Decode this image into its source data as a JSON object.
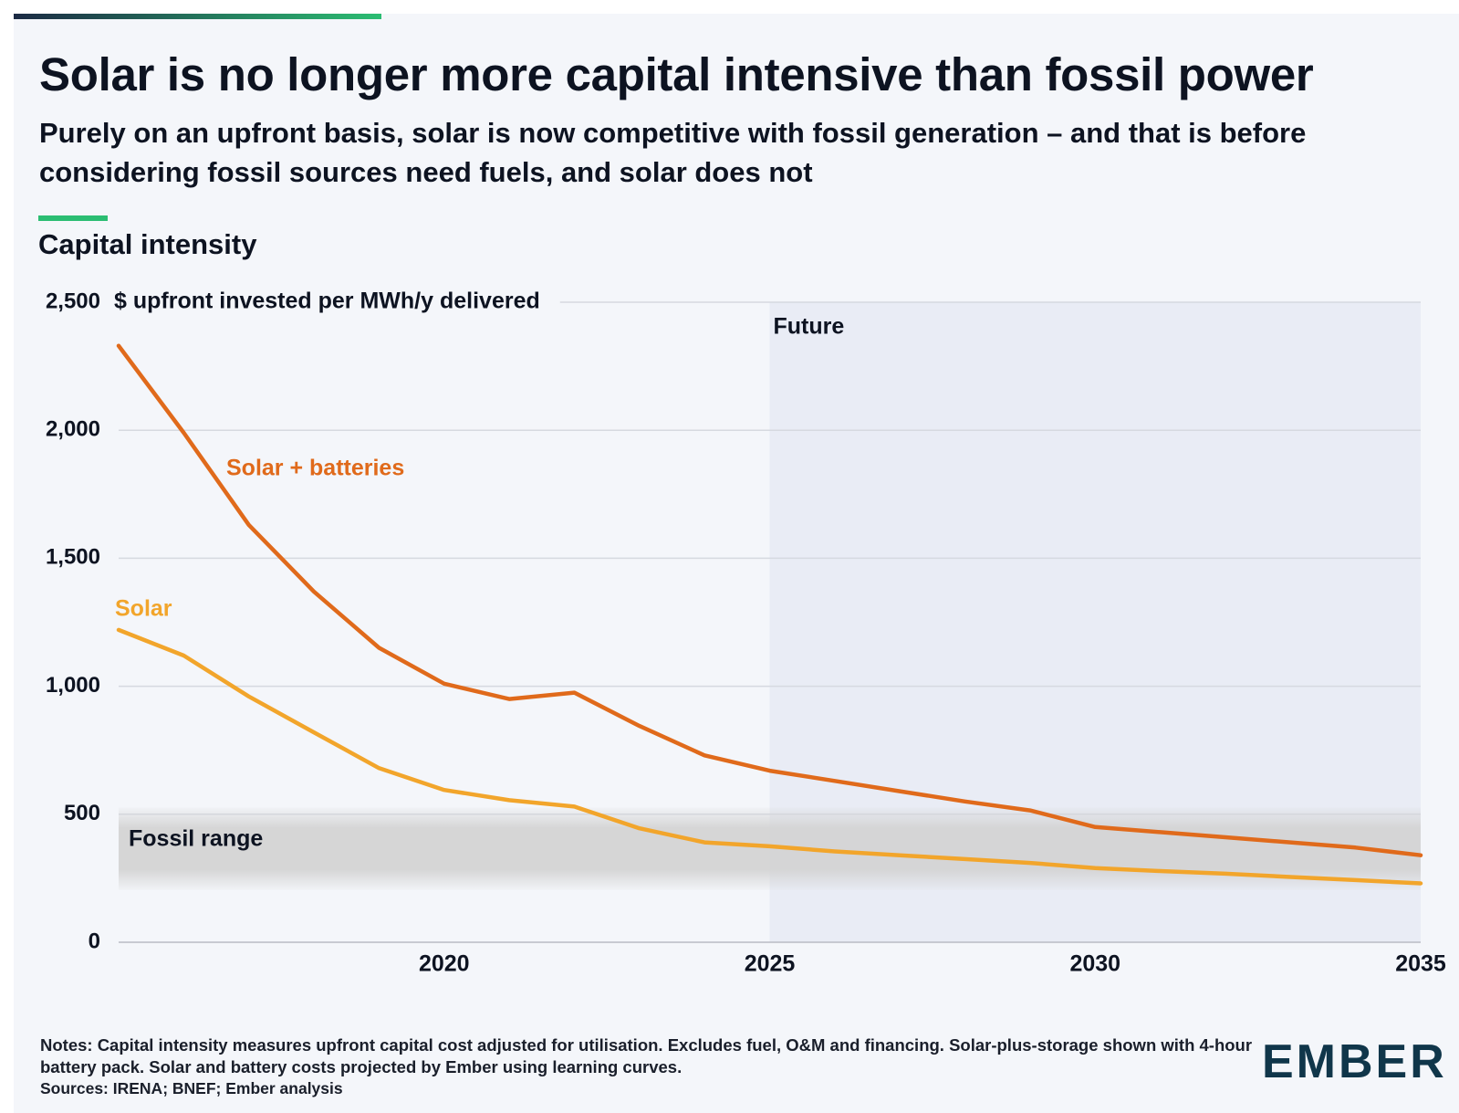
{
  "chart_data": {
    "type": "line",
    "title": "Solar is no longer more capital intensive than fossil power",
    "subtitle": "Purely on an upfront basis, solar is now competitive with fossil generation – and that is before considering fossil sources need fuels, and solar does not",
    "heading": "Capital intensity",
    "y_label": "$ upfront invested per MWh/y delivered",
    "x": [
      2015,
      2016,
      2017,
      2018,
      2019,
      2020,
      2021,
      2022,
      2023,
      2024,
      2025,
      2026,
      2027,
      2028,
      2029,
      2030,
      2031,
      2032,
      2033,
      2034,
      2035
    ],
    "series": [
      {
        "name": "Solar + batteries",
        "color": "#e06a1b",
        "values": [
          2330,
          1990,
          1630,
          1370,
          1150,
          1010,
          950,
          975,
          845,
          730,
          670,
          630,
          590,
          550,
          515,
          450,
          430,
          410,
          390,
          370,
          340
        ]
      },
      {
        "name": "Solar",
        "color": "#f2a52b",
        "values": [
          1220,
          1120,
          960,
          820,
          680,
          595,
          555,
          530,
          445,
          390,
          375,
          355,
          340,
          325,
          310,
          290,
          278,
          268,
          255,
          243,
          230
        ]
      }
    ],
    "future": {
      "label": "Future",
      "from": 2025,
      "to": 2035
    },
    "fossil_range": {
      "label": "Fossil range",
      "low": 250,
      "high": 480
    },
    "xlim": [
      2015,
      2035
    ],
    "xticks": [
      2020,
      2025,
      2030,
      2035
    ],
    "ylim": [
      0,
      2500
    ],
    "yticks": [
      0,
      500,
      {
        "value": 1000,
        "label": "1,000"
      },
      {
        "value": 1500,
        "label": "1,500"
      },
      {
        "value": 2000,
        "label": "2,000"
      },
      {
        "value": 2500,
        "label": "2,500"
      }
    ],
    "grid": true
  },
  "notes": "Notes: Capital intensity measures upfront capital cost adjusted for utilisation. Excludes fuel, O&M and financing. Solar-plus-storage shown with 4-hour battery pack. Solar and battery costs projected by Ember using learning curves.",
  "sources": "Sources: IRENA; BNEF; Ember analysis",
  "brand": "EMBER"
}
